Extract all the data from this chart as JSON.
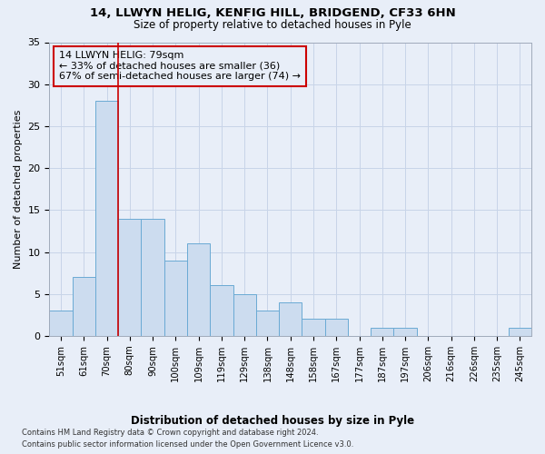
{
  "title1": "14, LLWYN HELIG, KENFIG HILL, BRIDGEND, CF33 6HN",
  "title2": "Size of property relative to detached houses in Pyle",
  "xlabel": "Distribution of detached houses by size in Pyle",
  "ylabel": "Number of detached properties",
  "bins": [
    "51sqm",
    "61sqm",
    "70sqm",
    "80sqm",
    "90sqm",
    "100sqm",
    "109sqm",
    "119sqm",
    "129sqm",
    "138sqm",
    "148sqm",
    "158sqm",
    "167sqm",
    "177sqm",
    "187sqm",
    "197sqm",
    "206sqm",
    "216sqm",
    "226sqm",
    "235sqm",
    "245sqm"
  ],
  "values": [
    3,
    7,
    28,
    14,
    14,
    9,
    11,
    6,
    5,
    3,
    4,
    2,
    2,
    0,
    1,
    1,
    0,
    0,
    0,
    0,
    1
  ],
  "bar_color": "#ccdcef",
  "bar_edge_color": "#6aaad4",
  "grid_color": "#c8d4e8",
  "background_color": "#e8eef8",
  "property_line_color": "#cc0000",
  "annotation_text": "14 LLWYN HELIG: 79sqm\n← 33% of detached houses are smaller (36)\n67% of semi-detached houses are larger (74) →",
  "annotation_box_edge_color": "#cc0000",
  "footer1": "Contains HM Land Registry data © Crown copyright and database right 2024.",
  "footer2": "Contains public sector information licensed under the Open Government Licence v3.0.",
  "ylim": [
    0,
    35
  ],
  "yticks": [
    0,
    5,
    10,
    15,
    20,
    25,
    30,
    35
  ]
}
